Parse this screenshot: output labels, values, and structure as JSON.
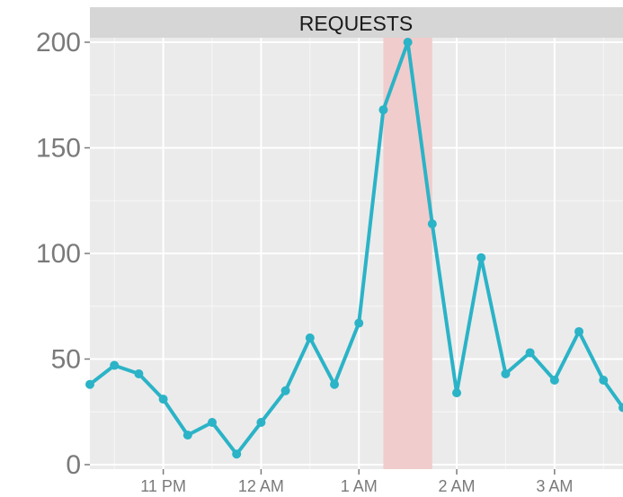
{
  "chart_data": {
    "type": "line",
    "title": "REQUESTS",
    "xlabel": "",
    "ylabel": "",
    "x_tick_labels": [
      "11 PM",
      "12 AM",
      "1 AM",
      "2 AM",
      "3 AM"
    ],
    "x_tick_hours": [
      23,
      24,
      25,
      26,
      27
    ],
    "y_ticks": [
      0,
      50,
      100,
      150,
      200
    ],
    "ylim": [
      0,
      200
    ],
    "xlim_hours": [
      22.25,
      27.7
    ],
    "grid": true,
    "highlight_band_hours": [
      25.25,
      25.75
    ],
    "series": [
      {
        "x_hours": [
          22.25,
          22.5,
          22.75,
          23.0,
          23.25,
          23.5,
          23.75,
          24.0,
          24.25,
          24.5,
          24.75,
          25.0,
          25.25,
          25.5,
          25.75,
          26.0,
          26.25,
          26.5,
          26.75,
          27.0,
          27.25,
          27.5,
          27.7
        ],
        "values": [
          38,
          47,
          43,
          31,
          14,
          20,
          5,
          20,
          35,
          60,
          38,
          67,
          168,
          200,
          114,
          34,
          98,
          43,
          53,
          40,
          63,
          40,
          27
        ]
      }
    ],
    "colors": {
      "line": "#2bb3c7",
      "highlight": "#f1cccc",
      "panel": "#ebebeb",
      "grid": "#ffffff",
      "strip": "#d6d6d6"
    }
  }
}
